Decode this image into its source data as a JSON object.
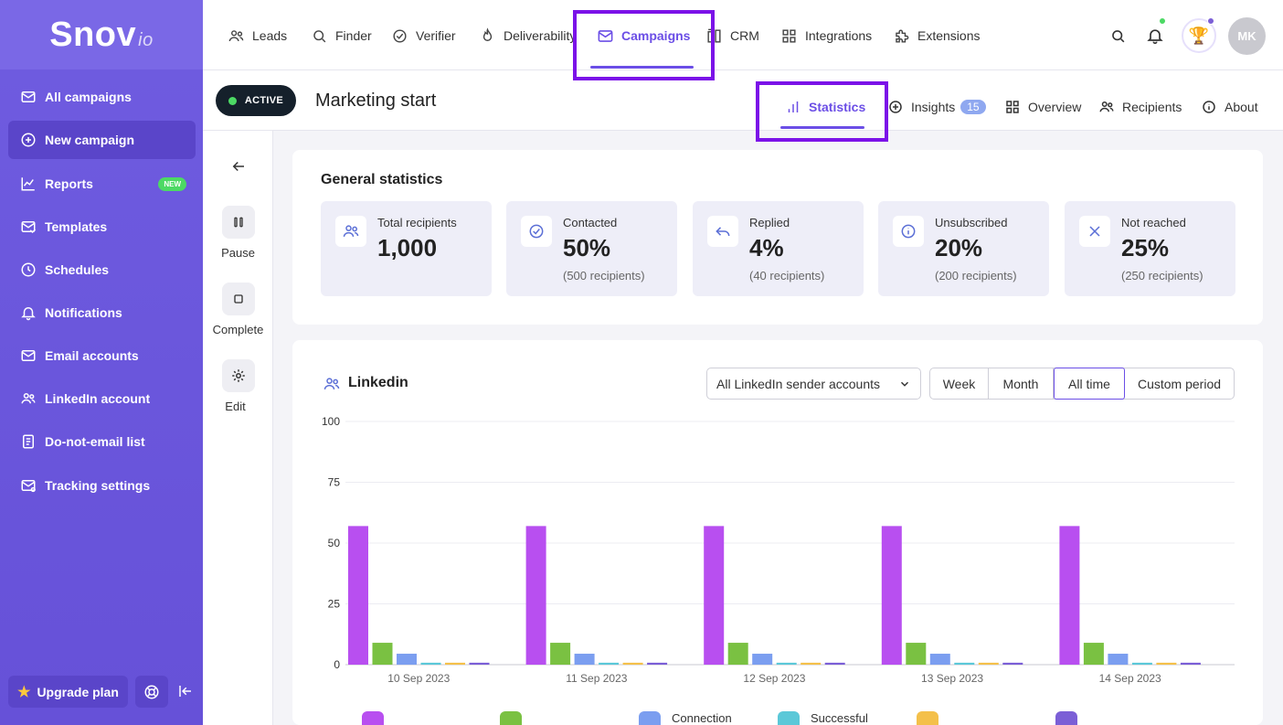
{
  "brand": {
    "name": "Snov",
    "suffix": "io",
    "accent": "#6b4ee6",
    "highlight": "#7b12e8"
  },
  "sidebar": {
    "items": [
      {
        "label": "All campaigns",
        "icon": "mail-icon"
      },
      {
        "label": "New campaign",
        "icon": "plus-circle-icon",
        "active": true
      },
      {
        "label": "Reports",
        "icon": "chart-line-icon",
        "badge": "NEW"
      },
      {
        "label": "Templates",
        "icon": "template-icon"
      },
      {
        "label": "Schedules",
        "icon": "clock-icon"
      },
      {
        "label": "Notifications",
        "icon": "bell-icon"
      },
      {
        "label": "Email accounts",
        "icon": "mail-icon"
      },
      {
        "label": "LinkedIn account",
        "icon": "people-icon"
      },
      {
        "label": "Do-not-email list",
        "icon": "list-icon"
      },
      {
        "label": "Tracking settings",
        "icon": "mail-settings-icon"
      }
    ],
    "upgrade_label": "Upgrade plan"
  },
  "topnav": {
    "items": [
      {
        "label": "Leads"
      },
      {
        "label": "Finder"
      },
      {
        "label": "Verifier"
      },
      {
        "label": "Deliverability"
      },
      {
        "label": "Campaigns",
        "active": true
      },
      {
        "label": "CRM"
      },
      {
        "label": "Integrations"
      },
      {
        "label": "Extensions"
      }
    ],
    "avatar_initials": "MK"
  },
  "campaign": {
    "status": "ACTIVE",
    "title": "Marketing start",
    "tabs": [
      {
        "label": "Statistics",
        "active": true
      },
      {
        "label": "Insights",
        "count": "15"
      },
      {
        "label": "Overview"
      },
      {
        "label": "Recipients"
      },
      {
        "label": "About"
      }
    ]
  },
  "actions": {
    "pause": "Pause",
    "complete": "Complete",
    "edit": "Edit"
  },
  "general": {
    "title": "General statistics",
    "stats": [
      {
        "label": "Total recipients",
        "value": "1,000",
        "sub": ""
      },
      {
        "label": "Contacted",
        "value": "50%",
        "sub": "(500 recipients)"
      },
      {
        "label": "Replied",
        "value": "4%",
        "sub": "(40 recipients)"
      },
      {
        "label": "Unsubscribed",
        "value": "20%",
        "sub": "(200 recipients)"
      },
      {
        "label": "Not reached",
        "value": "25%",
        "sub": "(250 recipients)"
      }
    ]
  },
  "linkedin": {
    "title": "Linkedin",
    "sender_select": "All LinkedIn sender accounts",
    "periods": [
      "Week",
      "Month",
      "All time",
      "Custom period"
    ],
    "active_period": "All time"
  },
  "chart_data": {
    "type": "bar",
    "categories": [
      "10 Sep 2023",
      "11 Sep 2023",
      "12 Sep 2023",
      "13 Sep 2023",
      "14 Sep 2023"
    ],
    "ylim": [
      0,
      100
    ],
    "yticks": [
      0,
      25,
      50,
      75,
      100
    ],
    "grid": true,
    "series": [
      {
        "color": "#b84ff0",
        "values": [
          57,
          57,
          57,
          57,
          57
        ]
      },
      {
        "color": "#7ac142",
        "values": [
          9,
          9,
          9,
          9,
          9
        ]
      },
      {
        "color": "#7b9ef0",
        "values": [
          4.5,
          4.5,
          4.5,
          4.5,
          4.5
        ]
      },
      {
        "color": "#5bc8d8",
        "values": [
          0.8,
          0.8,
          0.8,
          0.8,
          0.8
        ]
      },
      {
        "color": "#f4c04a",
        "values": [
          0.8,
          0.8,
          0.8,
          0.8,
          0.8
        ]
      },
      {
        "color": "#7b5fd6",
        "values": [
          0.8,
          0.8,
          0.8,
          0.8,
          0.8
        ]
      }
    ],
    "legend_partial": [
      "Connection",
      "Successful"
    ]
  }
}
